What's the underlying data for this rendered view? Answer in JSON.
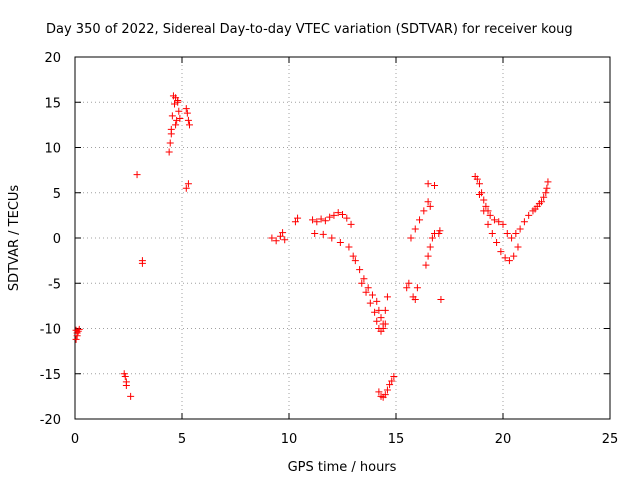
{
  "chart_data": {
    "type": "scatter",
    "title": "Day 350 of 2022, Sidereal Day-to-day VTEC variation (SDTVAR) for receiver koug",
    "xlabel": "GPS time / hours",
    "ylabel": "SDTVAR / TECUs",
    "xlim": [
      0,
      25
    ],
    "ylim": [
      -20,
      20
    ],
    "xticks": [
      0,
      5,
      10,
      15,
      20,
      25
    ],
    "yticks": [
      -20,
      -15,
      -10,
      -5,
      0,
      5,
      10,
      15,
      20
    ],
    "xtick_labels": [
      "0",
      "5",
      "10",
      "15",
      "20",
      "25"
    ],
    "ytick_labels": [
      "-20",
      "-15",
      "-10",
      "-5",
      "0",
      "5",
      "10",
      "15",
      "20"
    ],
    "grid": true,
    "marker": "+",
    "color": "#ff0000",
    "series": [
      {
        "name": "SDTVAR",
        "x": [
          0.05,
          0.1,
          0.15,
          0.2,
          0.05,
          0.1,
          2.3,
          2.35,
          2.4,
          2.4,
          2.6,
          2.9,
          3.15,
          3.15,
          4.4,
          4.45,
          4.5,
          4.55,
          4.6,
          4.65,
          4.7,
          4.75,
          4.8,
          4.85,
          4.9,
          4.5,
          4.7,
          4.8,
          5.2,
          5.25,
          5.3,
          5.35,
          5.2,
          5.3,
          9.2,
          9.4,
          9.6,
          9.7,
          9.8,
          10.3,
          10.4,
          11.1,
          11.3,
          11.5,
          11.7,
          11.9,
          12.1,
          12.3,
          12.5,
          12.7,
          12.9,
          11.2,
          11.6,
          12.0,
          12.4,
          12.8,
          13.0,
          13.1,
          13.3,
          13.5,
          13.7,
          13.9,
          14.1,
          14.2,
          14.3,
          14.4,
          14.5,
          13.4,
          13.6,
          13.8,
          14.0,
          14.1,
          14.2,
          14.3,
          14.4,
          14.5,
          14.6,
          14.2,
          14.3,
          14.4,
          14.5,
          14.6,
          14.7,
          14.8,
          14.9,
          15.5,
          15.6,
          15.8,
          15.9,
          16.0,
          15.7,
          15.9,
          16.1,
          16.3,
          16.5,
          16.6,
          16.8,
          16.4,
          16.5,
          16.6,
          16.7,
          16.8,
          16.5,
          17.0,
          17.1,
          17.05,
          18.7,
          18.8,
          18.9,
          19.0,
          19.1,
          19.2,
          19.3,
          19.4,
          19.6,
          19.8,
          18.9,
          19.1,
          19.3,
          19.5,
          19.7,
          19.9,
          20.1,
          20.3,
          20.5,
          20.7,
          20.0,
          20.2,
          20.4,
          20.6,
          20.8,
          21.0,
          21.2,
          21.4,
          21.6,
          21.8,
          22.0,
          22.1,
          21.5,
          21.7,
          21.9,
          22.05
        ],
        "y": [
          -10.2,
          -10.5,
          -10.3,
          -10.1,
          -11.2,
          -10.8,
          -15.0,
          -15.3,
          -15.9,
          -16.3,
          -17.5,
          7.0,
          -2.5,
          -2.8,
          9.5,
          10.5,
          12.0,
          13.5,
          15.7,
          14.8,
          15.5,
          13.0,
          15.2,
          14.0,
          13.2,
          11.5,
          12.5,
          15.0,
          14.3,
          13.8,
          13.0,
          12.5,
          5.5,
          6.0,
          0.0,
          -0.3,
          0.2,
          0.6,
          -0.2,
          1.8,
          2.2,
          2.0,
          1.8,
          2.1,
          1.9,
          2.3,
          2.5,
          2.8,
          2.6,
          2.2,
          1.5,
          0.5,
          0.4,
          0.0,
          -0.5,
          -1.0,
          -2.0,
          -2.5,
          -3.5,
          -4.5,
          -5.5,
          -6.3,
          -7.0,
          -8.0,
          -8.8,
          -10.0,
          -9.5,
          -5.0,
          -6.0,
          -7.2,
          -8.2,
          -9.2,
          -10.0,
          -10.3,
          -9.5,
          -8.0,
          -6.5,
          -17.0,
          -17.5,
          -17.6,
          -17.3,
          -16.8,
          -16.2,
          -15.8,
          -15.3,
          -5.5,
          -5.0,
          -6.5,
          -6.8,
          -5.5,
          0.0,
          1.0,
          2.0,
          3.0,
          4.0,
          3.5,
          5.8,
          -3.0,
          -2.0,
          -1.0,
          0.0,
          0.5,
          6.0,
          0.5,
          -6.8,
          0.8,
          6.8,
          6.5,
          6.0,
          5.0,
          4.2,
          3.5,
          3.0,
          2.5,
          2.0,
          1.8,
          4.8,
          3.0,
          1.5,
          0.5,
          -0.5,
          -1.5,
          -2.2,
          -2.5,
          -2.0,
          -1.0,
          1.5,
          0.5,
          0.0,
          0.5,
          1.0,
          1.8,
          2.5,
          3.0,
          3.5,
          4.0,
          5.0,
          6.2,
          3.2,
          3.8,
          4.5,
          5.5
        ]
      }
    ]
  }
}
